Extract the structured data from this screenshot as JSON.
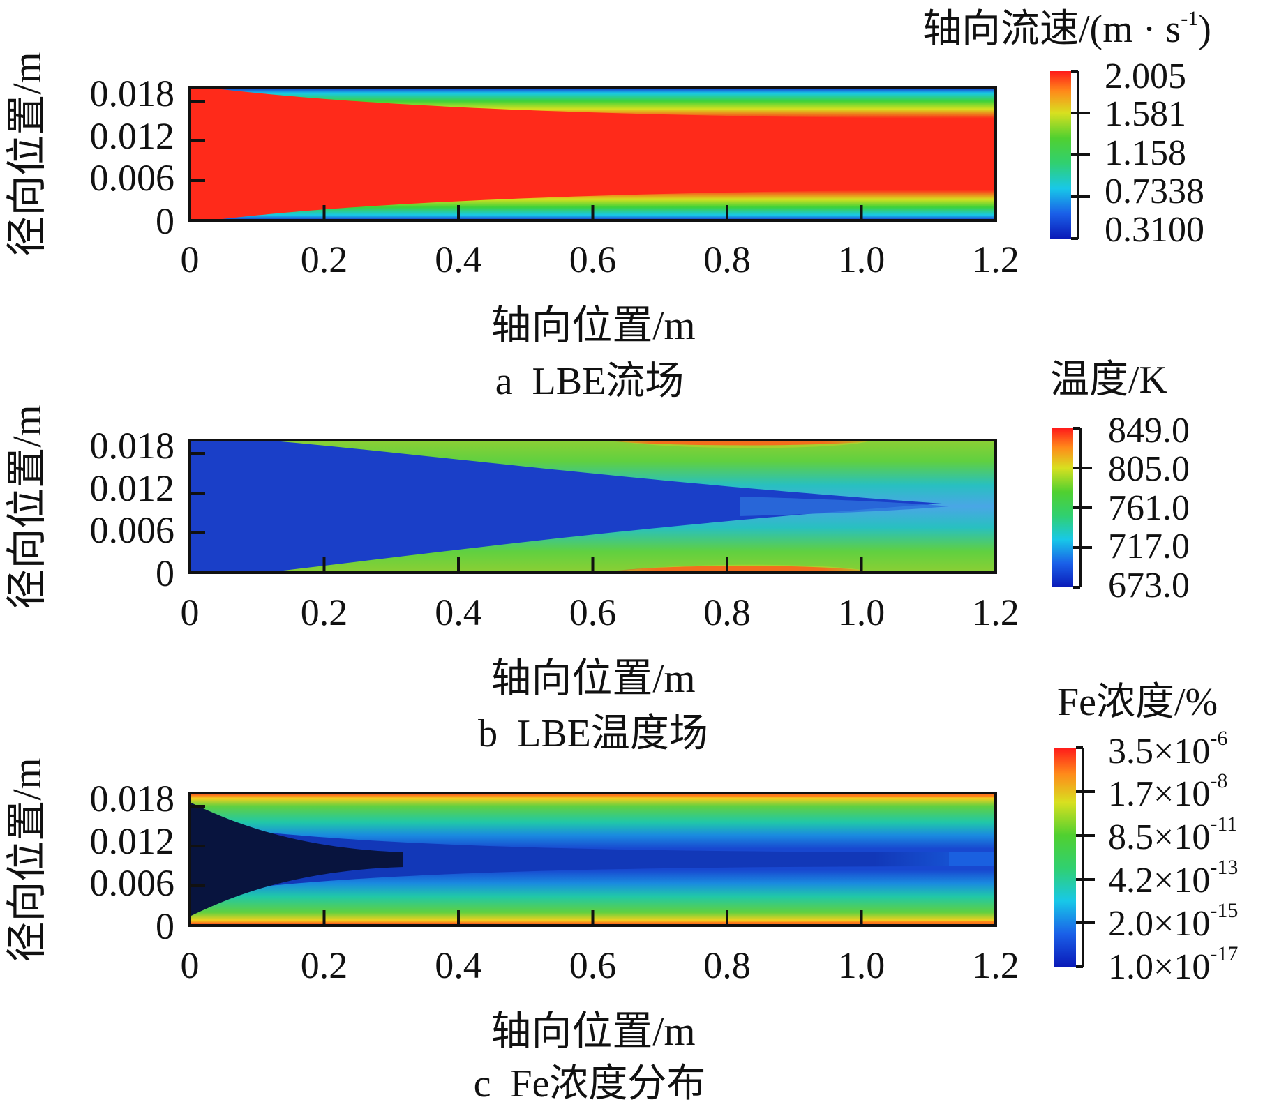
{
  "chart_data": [
    {
      "type": "heatmap",
      "field": "velocity",
      "caption": "a  LBE流场",
      "xlabel": "轴向位置/m",
      "ylabel": "径向位置/m",
      "xlim": [
        0,
        1.2
      ],
      "ylim": [
        0,
        0.02
      ],
      "xticks": [
        "0",
        "0.2",
        "0.4",
        "0.6",
        "0.8",
        "1.0",
        "1.2"
      ],
      "yticks": [
        "0",
        "0.006",
        "0.012",
        "0.018"
      ],
      "ytick_values": [
        0,
        0.006,
        0.012,
        0.018
      ],
      "colorbar": {
        "title": "轴向流速/(m · s",
        "title_exp": "-1",
        "title_suffix": ")",
        "labels": [
          {
            "text": "2.005",
            "exp": ""
          },
          {
            "text": "1.581",
            "exp": ""
          },
          {
            "text": "1.158",
            "exp": ""
          },
          {
            "text": "0.7338",
            "exp": ""
          },
          {
            "text": "0.3100",
            "exp": ""
          }
        ],
        "min": 0.31,
        "max": 2.005
      },
      "description_values": {
        "core_value": 2.005,
        "wall_value": 0.31,
        "inlet_core_fraction": 1.0,
        "outlet_core_halfwidth_m": 0.006
      }
    },
    {
      "type": "heatmap",
      "field": "temperature",
      "caption": "b  LBE温度场",
      "xlabel": "轴向位置/m",
      "ylabel": "径向位置/m",
      "xlim": [
        0,
        1.2
      ],
      "ylim": [
        0,
        0.02
      ],
      "xticks": [
        "0",
        "0.2",
        "0.4",
        "0.6",
        "0.8",
        "1.0",
        "1.2"
      ],
      "yticks": [
        "0",
        "0.006",
        "0.012",
        "0.018"
      ],
      "ytick_values": [
        0,
        0.006,
        0.012,
        0.018
      ],
      "colorbar": {
        "title": "温度/K",
        "title_exp": "",
        "title_suffix": "",
        "labels": [
          {
            "text": "849.0",
            "exp": ""
          },
          {
            "text": "805.0",
            "exp": ""
          },
          {
            "text": "761.0",
            "exp": ""
          },
          {
            "text": "717.0",
            "exp": ""
          },
          {
            "text": "673.0",
            "exp": ""
          }
        ],
        "min": 673.0,
        "max": 849.0
      },
      "description_values": {
        "core_value": 673.0,
        "wall_peak_value": 849.0,
        "wall_peak_x_m": [
          0.6,
          1.05
        ]
      }
    },
    {
      "type": "heatmap",
      "field": "Fe concentration",
      "caption": "c  Fe浓度分布",
      "xlabel": "轴向位置/m",
      "ylabel": "径向位置/m",
      "xlim": [
        0,
        1.2
      ],
      "ylim": [
        0,
        0.02
      ],
      "xticks": [
        "0",
        "0.2",
        "0.4",
        "0.6",
        "0.8",
        "1.0",
        "1.2"
      ],
      "yticks": [
        "0",
        "0.006",
        "0.012",
        "0.018"
      ],
      "ytick_values": [
        0,
        0.006,
        0.012,
        0.018
      ],
      "colorbar": {
        "title": "Fe浓度/%",
        "title_exp": "",
        "title_suffix": "",
        "labels": [
          {
            "text": "3.5×10",
            "exp": "-6"
          },
          {
            "text": "1.7×10",
            "exp": "-8"
          },
          {
            "text": "8.5×10",
            "exp": "-11"
          },
          {
            "text": "4.2×10",
            "exp": "-13"
          },
          {
            "text": "2.0×10",
            "exp": "-15"
          },
          {
            "text": "1.0×10",
            "exp": "-17"
          }
        ],
        "min": 1e-17,
        "max": 3.5e-06,
        "scale": "log"
      },
      "description_values": {
        "core_value": 1e-17,
        "wall_value": 3.5e-06,
        "dark_core_end_x_m": 0.32
      }
    }
  ]
}
